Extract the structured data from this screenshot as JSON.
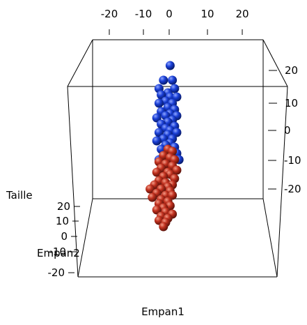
{
  "chart_data": {
    "type": "scatter",
    "projection": "3d",
    "title": "",
    "xlabel": "Empan1",
    "ylabel": "Empan2",
    "zlabel": "Taille",
    "x_ticks": [
      "-20",
      "-10",
      "0",
      "10",
      "20"
    ],
    "y_ticks": [
      "20",
      "10",
      "0",
      "-10",
      "-20"
    ],
    "z_ticks": [
      "20",
      "10",
      "0",
      "-10",
      "-20"
    ],
    "colors": {
      "series_a": "#1a3fd6",
      "series_b": "#c0301e"
    },
    "series": [
      {
        "color": "#1a3fd6",
        "points": [
          [
            2,
            27
          ],
          [
            -1,
            20
          ],
          [
            3,
            20
          ],
          [
            -3,
            16
          ],
          [
            4,
            16
          ],
          [
            1,
            14
          ],
          [
            -2,
            13
          ],
          [
            2,
            12
          ],
          [
            5,
            12
          ],
          [
            0,
            10
          ],
          [
            3,
            9
          ],
          [
            -3,
            9
          ],
          [
            1,
            7
          ],
          [
            4,
            6
          ],
          [
            -2,
            5
          ],
          [
            2,
            4
          ],
          [
            0,
            3
          ],
          [
            5,
            3
          ],
          [
            -4,
            2
          ],
          [
            3,
            1
          ],
          [
            1,
            0
          ],
          [
            -2,
            -1
          ],
          [
            4,
            -2
          ],
          [
            0,
            -3
          ],
          [
            2,
            -4
          ],
          [
            -3,
            -5
          ],
          [
            5,
            -5
          ],
          [
            1,
            -6
          ],
          [
            -1,
            -8
          ],
          [
            3,
            -8
          ],
          [
            -4,
            -9
          ],
          [
            2,
            -10
          ],
          [
            0,
            -11
          ],
          [
            4,
            -12
          ],
          [
            -2,
            -13
          ],
          [
            1,
            -14
          ],
          [
            5,
            -15
          ],
          [
            -1,
            -16
          ],
          [
            3,
            -17
          ],
          [
            6,
            -18
          ],
          [
            -3,
            -18
          ],
          [
            2,
            -20
          ],
          [
            -2,
            -38
          ]
        ]
      },
      {
        "color": "#c0301e",
        "points": [
          [
            1,
            -13
          ],
          [
            3,
            -14
          ],
          [
            -1,
            -16
          ],
          [
            2,
            -17
          ],
          [
            4,
            -18
          ],
          [
            -3,
            -19
          ],
          [
            0,
            -20
          ],
          [
            3,
            -21
          ],
          [
            -2,
            -22
          ],
          [
            5,
            -23
          ],
          [
            1,
            -24
          ],
          [
            -4,
            -24
          ],
          [
            2,
            -25
          ],
          [
            -1,
            -26
          ],
          [
            4,
            -27
          ],
          [
            -3,
            -28
          ],
          [
            0,
            -29
          ],
          [
            3,
            -30
          ],
          [
            -5,
            -30
          ],
          [
            1,
            -31
          ],
          [
            -2,
            -32
          ],
          [
            -7,
            -32
          ],
          [
            2,
            -33
          ],
          [
            -4,
            -34
          ],
          [
            0,
            -35
          ],
          [
            3,
            -35
          ],
          [
            -6,
            -36
          ],
          [
            -2,
            -37
          ],
          [
            1,
            -38
          ],
          [
            -3,
            -39
          ],
          [
            2,
            -40
          ],
          [
            -1,
            -41
          ],
          [
            -4,
            -42
          ],
          [
            0,
            -43
          ],
          [
            3,
            -44
          ],
          [
            -2,
            -45
          ],
          [
            1,
            -46
          ],
          [
            -3,
            -47
          ],
          [
            0,
            -48
          ],
          [
            -1,
            -50
          ]
        ]
      }
    ]
  }
}
